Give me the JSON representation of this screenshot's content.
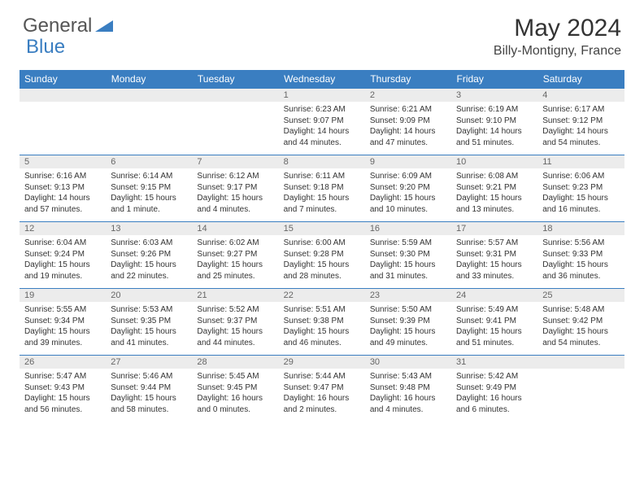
{
  "brand": {
    "general": "General",
    "blue": "Blue"
  },
  "title": "May 2024",
  "location": "Billy-Montigny, France",
  "colors": {
    "header_bg": "#3a7ec1",
    "header_text": "#ffffff",
    "daynum_bg": "#ececec",
    "border": "#3a7ec1",
    "text": "#333333"
  },
  "day_headers": [
    "Sunday",
    "Monday",
    "Tuesday",
    "Wednesday",
    "Thursday",
    "Friday",
    "Saturday"
  ],
  "weeks": [
    {
      "nums": [
        "",
        "",
        "",
        "1",
        "2",
        "3",
        "4"
      ],
      "info": [
        "",
        "",
        "",
        "Sunrise: 6:23 AM\nSunset: 9:07 PM\nDaylight: 14 hours and 44 minutes.",
        "Sunrise: 6:21 AM\nSunset: 9:09 PM\nDaylight: 14 hours and 47 minutes.",
        "Sunrise: 6:19 AM\nSunset: 9:10 PM\nDaylight: 14 hours and 51 minutes.",
        "Sunrise: 6:17 AM\nSunset: 9:12 PM\nDaylight: 14 hours and 54 minutes."
      ]
    },
    {
      "nums": [
        "5",
        "6",
        "7",
        "8",
        "9",
        "10",
        "11"
      ],
      "info": [
        "Sunrise: 6:16 AM\nSunset: 9:13 PM\nDaylight: 14 hours and 57 minutes.",
        "Sunrise: 6:14 AM\nSunset: 9:15 PM\nDaylight: 15 hours and 1 minute.",
        "Sunrise: 6:12 AM\nSunset: 9:17 PM\nDaylight: 15 hours and 4 minutes.",
        "Sunrise: 6:11 AM\nSunset: 9:18 PM\nDaylight: 15 hours and 7 minutes.",
        "Sunrise: 6:09 AM\nSunset: 9:20 PM\nDaylight: 15 hours and 10 minutes.",
        "Sunrise: 6:08 AM\nSunset: 9:21 PM\nDaylight: 15 hours and 13 minutes.",
        "Sunrise: 6:06 AM\nSunset: 9:23 PM\nDaylight: 15 hours and 16 minutes."
      ]
    },
    {
      "nums": [
        "12",
        "13",
        "14",
        "15",
        "16",
        "17",
        "18"
      ],
      "info": [
        "Sunrise: 6:04 AM\nSunset: 9:24 PM\nDaylight: 15 hours and 19 minutes.",
        "Sunrise: 6:03 AM\nSunset: 9:26 PM\nDaylight: 15 hours and 22 minutes.",
        "Sunrise: 6:02 AM\nSunset: 9:27 PM\nDaylight: 15 hours and 25 minutes.",
        "Sunrise: 6:00 AM\nSunset: 9:28 PM\nDaylight: 15 hours and 28 minutes.",
        "Sunrise: 5:59 AM\nSunset: 9:30 PM\nDaylight: 15 hours and 31 minutes.",
        "Sunrise: 5:57 AM\nSunset: 9:31 PM\nDaylight: 15 hours and 33 minutes.",
        "Sunrise: 5:56 AM\nSunset: 9:33 PM\nDaylight: 15 hours and 36 minutes."
      ]
    },
    {
      "nums": [
        "19",
        "20",
        "21",
        "22",
        "23",
        "24",
        "25"
      ],
      "info": [
        "Sunrise: 5:55 AM\nSunset: 9:34 PM\nDaylight: 15 hours and 39 minutes.",
        "Sunrise: 5:53 AM\nSunset: 9:35 PM\nDaylight: 15 hours and 41 minutes.",
        "Sunrise: 5:52 AM\nSunset: 9:37 PM\nDaylight: 15 hours and 44 minutes.",
        "Sunrise: 5:51 AM\nSunset: 9:38 PM\nDaylight: 15 hours and 46 minutes.",
        "Sunrise: 5:50 AM\nSunset: 9:39 PM\nDaylight: 15 hours and 49 minutes.",
        "Sunrise: 5:49 AM\nSunset: 9:41 PM\nDaylight: 15 hours and 51 minutes.",
        "Sunrise: 5:48 AM\nSunset: 9:42 PM\nDaylight: 15 hours and 54 minutes."
      ]
    },
    {
      "nums": [
        "26",
        "27",
        "28",
        "29",
        "30",
        "31",
        ""
      ],
      "info": [
        "Sunrise: 5:47 AM\nSunset: 9:43 PM\nDaylight: 15 hours and 56 minutes.",
        "Sunrise: 5:46 AM\nSunset: 9:44 PM\nDaylight: 15 hours and 58 minutes.",
        "Sunrise: 5:45 AM\nSunset: 9:45 PM\nDaylight: 16 hours and 0 minutes.",
        "Sunrise: 5:44 AM\nSunset: 9:47 PM\nDaylight: 16 hours and 2 minutes.",
        "Sunrise: 5:43 AM\nSunset: 9:48 PM\nDaylight: 16 hours and 4 minutes.",
        "Sunrise: 5:42 AM\nSunset: 9:49 PM\nDaylight: 16 hours and 6 minutes.",
        ""
      ]
    }
  ]
}
